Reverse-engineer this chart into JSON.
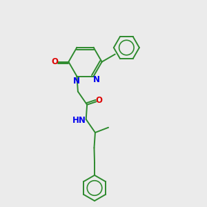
{
  "bg_color": "#ebebeb",
  "bond_color": "#2d8a2d",
  "N_color": "#0000ee",
  "O_color": "#dd0000",
  "line_width": 1.4,
  "font_size": 8.5,
  "fig_size": [
    3.0,
    3.0
  ],
  "dpi": 100,
  "xlim": [
    0,
    10
  ],
  "ylim": [
    0,
    10
  ]
}
